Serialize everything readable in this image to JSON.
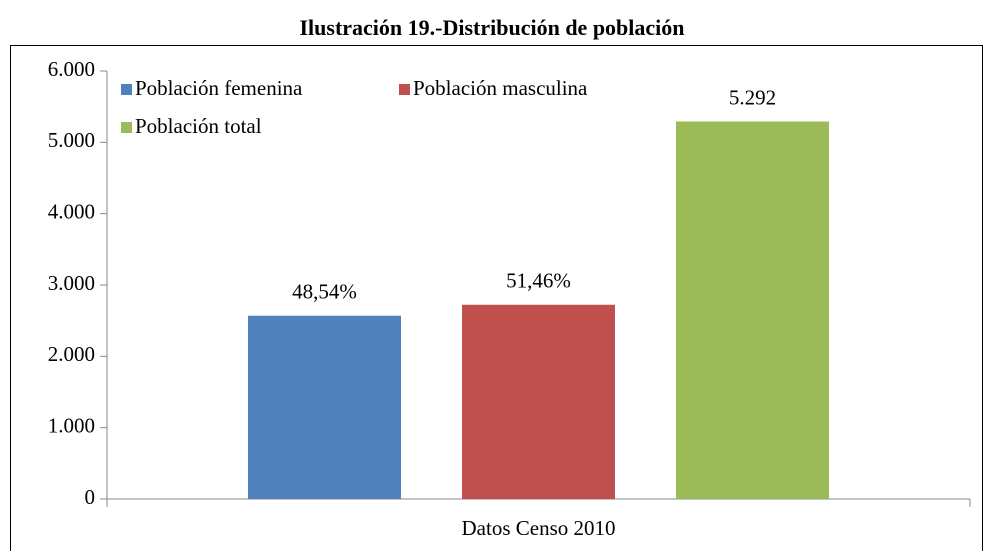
{
  "chart_data": {
    "type": "bar",
    "title": "Ilustración 19.-Distribución de población",
    "categories": [
      "Datos Censo 2010"
    ],
    "series": [
      {
        "name": "Población femenina",
        "color": "#4f81bd",
        "values": [
          2569
        ],
        "value_labels": [
          "48,54%"
        ]
      },
      {
        "name": "Población masculina",
        "color": "#c0504d",
        "values": [
          2723
        ],
        "value_labels": [
          "51,46%"
        ]
      },
      {
        "name": "Población total",
        "color": "#9bbb59",
        "values": [
          5292
        ],
        "value_labels": [
          "5.292"
        ]
      }
    ],
    "ylim": [
      0,
      6000
    ],
    "yticks": [
      0,
      {
        "value": 1000,
        "label": "1.000"
      },
      {
        "value": 2000,
        "label": "2.000"
      },
      {
        "value": 3000,
        "label": "3.000"
      },
      {
        "value": 4000,
        "label": "4.000"
      },
      {
        "value": 5000,
        "label": "5.000"
      },
      {
        "value": 6000,
        "label": "6.000"
      }
    ],
    "grid": false,
    "legend": "top-left"
  }
}
